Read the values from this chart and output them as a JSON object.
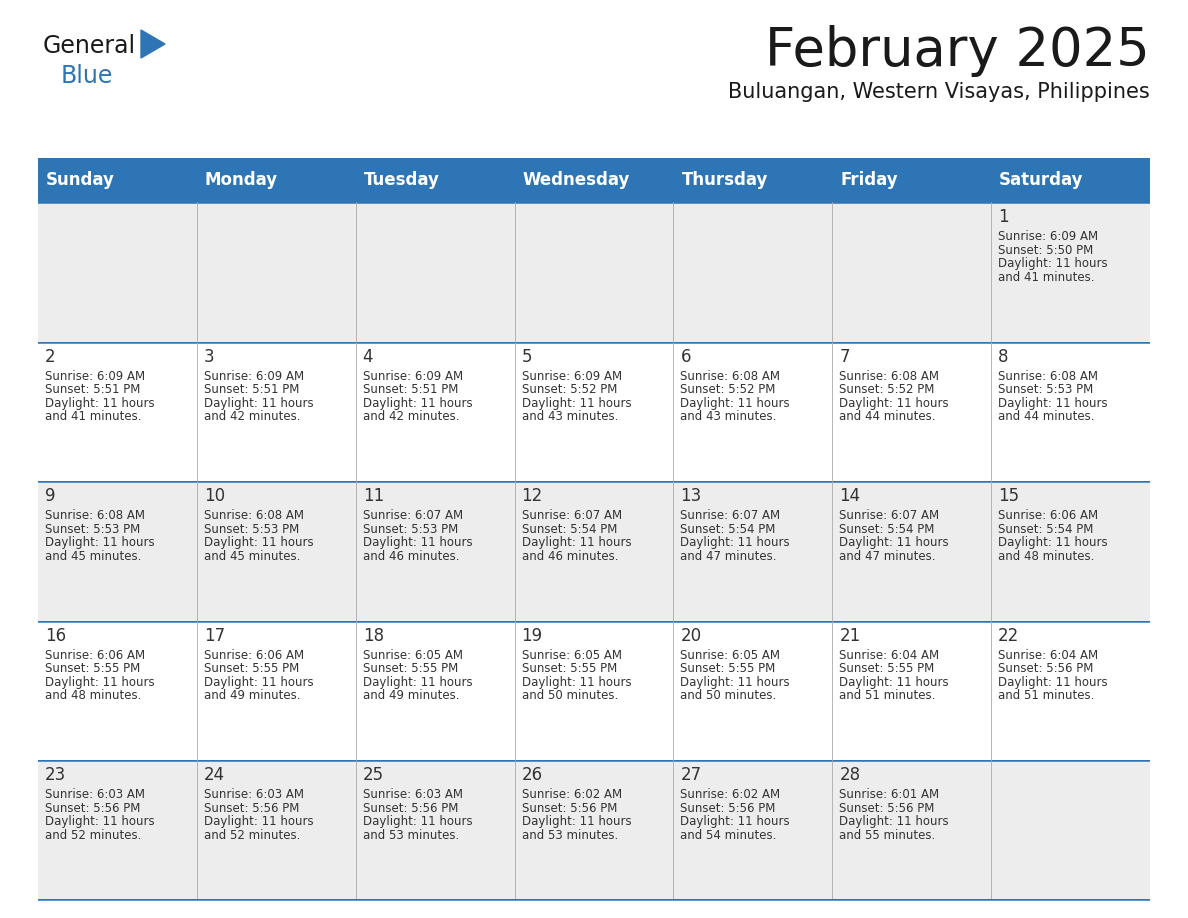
{
  "title": "February 2025",
  "subtitle": "Buluangan, Western Visayas, Philippines",
  "header_color": "#2E75B6",
  "header_text_color": "#FFFFFF",
  "days_of_week": [
    "Sunday",
    "Monday",
    "Tuesday",
    "Wednesday",
    "Thursday",
    "Friday",
    "Saturday"
  ],
  "background_color": "#FFFFFF",
  "cell_bg_white": "#FFFFFF",
  "cell_bg_gray": "#EDEDED",
  "grid_line_color": "#AAAAAA",
  "week_separator_color": "#2E75B6",
  "text_color": "#333333",
  "calendar_data": [
    [
      null,
      null,
      null,
      null,
      null,
      null,
      {
        "day": 1,
        "sunrise": "6:09 AM",
        "sunset": "5:50 PM",
        "daylight": "11 hours and 41 minutes."
      }
    ],
    [
      {
        "day": 2,
        "sunrise": "6:09 AM",
        "sunset": "5:51 PM",
        "daylight": "11 hours and 41 minutes."
      },
      {
        "day": 3,
        "sunrise": "6:09 AM",
        "sunset": "5:51 PM",
        "daylight": "11 hours and 42 minutes."
      },
      {
        "day": 4,
        "sunrise": "6:09 AM",
        "sunset": "5:51 PM",
        "daylight": "11 hours and 42 minutes."
      },
      {
        "day": 5,
        "sunrise": "6:09 AM",
        "sunset": "5:52 PM",
        "daylight": "11 hours and 43 minutes."
      },
      {
        "day": 6,
        "sunrise": "6:08 AM",
        "sunset": "5:52 PM",
        "daylight": "11 hours and 43 minutes."
      },
      {
        "day": 7,
        "sunrise": "6:08 AM",
        "sunset": "5:52 PM",
        "daylight": "11 hours and 44 minutes."
      },
      {
        "day": 8,
        "sunrise": "6:08 AM",
        "sunset": "5:53 PM",
        "daylight": "11 hours and 44 minutes."
      }
    ],
    [
      {
        "day": 9,
        "sunrise": "6:08 AM",
        "sunset": "5:53 PM",
        "daylight": "11 hours and 45 minutes."
      },
      {
        "day": 10,
        "sunrise": "6:08 AM",
        "sunset": "5:53 PM",
        "daylight": "11 hours and 45 minutes."
      },
      {
        "day": 11,
        "sunrise": "6:07 AM",
        "sunset": "5:53 PM",
        "daylight": "11 hours and 46 minutes."
      },
      {
        "day": 12,
        "sunrise": "6:07 AM",
        "sunset": "5:54 PM",
        "daylight": "11 hours and 46 minutes."
      },
      {
        "day": 13,
        "sunrise": "6:07 AM",
        "sunset": "5:54 PM",
        "daylight": "11 hours and 47 minutes."
      },
      {
        "day": 14,
        "sunrise": "6:07 AM",
        "sunset": "5:54 PM",
        "daylight": "11 hours and 47 minutes."
      },
      {
        "day": 15,
        "sunrise": "6:06 AM",
        "sunset": "5:54 PM",
        "daylight": "11 hours and 48 minutes."
      }
    ],
    [
      {
        "day": 16,
        "sunrise": "6:06 AM",
        "sunset": "5:55 PM",
        "daylight": "11 hours and 48 minutes."
      },
      {
        "day": 17,
        "sunrise": "6:06 AM",
        "sunset": "5:55 PM",
        "daylight": "11 hours and 49 minutes."
      },
      {
        "day": 18,
        "sunrise": "6:05 AM",
        "sunset": "5:55 PM",
        "daylight": "11 hours and 49 minutes."
      },
      {
        "day": 19,
        "sunrise": "6:05 AM",
        "sunset": "5:55 PM",
        "daylight": "11 hours and 50 minutes."
      },
      {
        "day": 20,
        "sunrise": "6:05 AM",
        "sunset": "5:55 PM",
        "daylight": "11 hours and 50 minutes."
      },
      {
        "day": 21,
        "sunrise": "6:04 AM",
        "sunset": "5:55 PM",
        "daylight": "11 hours and 51 minutes."
      },
      {
        "day": 22,
        "sunrise": "6:04 AM",
        "sunset": "5:56 PM",
        "daylight": "11 hours and 51 minutes."
      }
    ],
    [
      {
        "day": 23,
        "sunrise": "6:03 AM",
        "sunset": "5:56 PM",
        "daylight": "11 hours and 52 minutes."
      },
      {
        "day": 24,
        "sunrise": "6:03 AM",
        "sunset": "5:56 PM",
        "daylight": "11 hours and 52 minutes."
      },
      {
        "day": 25,
        "sunrise": "6:03 AM",
        "sunset": "5:56 PM",
        "daylight": "11 hours and 53 minutes."
      },
      {
        "day": 26,
        "sunrise": "6:02 AM",
        "sunset": "5:56 PM",
        "daylight": "11 hours and 53 minutes."
      },
      {
        "day": 27,
        "sunrise": "6:02 AM",
        "sunset": "5:56 PM",
        "daylight": "11 hours and 54 minutes."
      },
      {
        "day": 28,
        "sunrise": "6:01 AM",
        "sunset": "5:56 PM",
        "daylight": "11 hours and 55 minutes."
      },
      null
    ]
  ],
  "logo_text_general": "General",
  "logo_text_blue": "Blue",
  "logo_color_general": "#1A1A1A",
  "logo_color_blue": "#2E75B6",
  "logo_triangle_color": "#2E75B6",
  "fig_width": 11.88,
  "fig_height": 9.18,
  "dpi": 100
}
